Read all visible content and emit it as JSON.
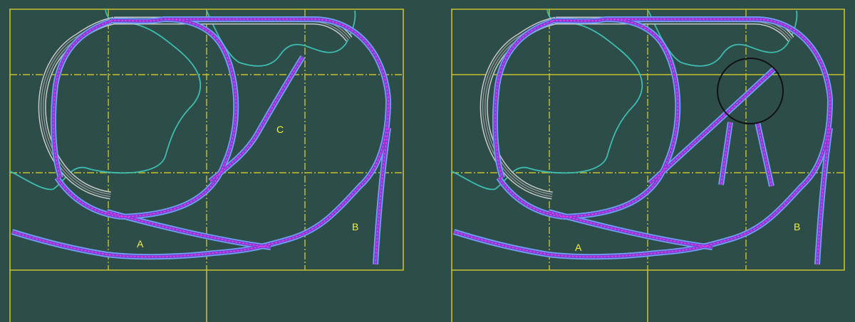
{
  "panels": [
    {
      "id": "before",
      "labels": {
        "a": "A",
        "b": "B",
        "c": "C"
      }
    },
    {
      "id": "after",
      "labels": {
        "a": "A",
        "b": "B"
      }
    }
  ],
  "colors": {
    "background": "#2d4e48",
    "grid": "#c7c02d",
    "terrain_contour": "#3dbdb0",
    "track_outline": "#6fa0f5",
    "track_centre": "#ea3aea",
    "upper_loop_track": "#c9c9c9",
    "label": "#f2ef3c"
  }
}
